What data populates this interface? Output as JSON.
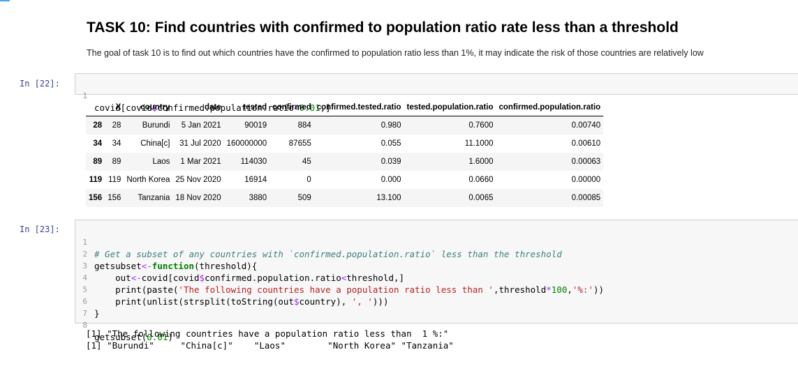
{
  "markdown": {
    "title": "TASK 10: Find countries with confirmed to population ratio rate less than a threshold",
    "description": "The goal of task 10 is to find out which countries have the confirmed to population ratio less than 1%, it may indicate the risk of those countries are relatively low"
  },
  "cell22": {
    "prompt": "In [22]:",
    "line_number": "1",
    "code_parts": {
      "a": "covid[covid",
      "op1": "$",
      "b": "confirmed.population.ratio",
      "op2": "<",
      "num": "0.01",
      "c": ",]"
    }
  },
  "table": {
    "columns": [
      "",
      "X",
      "country",
      "date",
      "tested",
      "confirmed",
      "confirmed.tested.ratio",
      "tested.population.ratio",
      "confirmed.population.ratio"
    ],
    "rows": [
      [
        "28",
        "28",
        "Burundi",
        "5 Jan 2021",
        "90019",
        "884",
        "0.980",
        "0.7600",
        "0.00740"
      ],
      [
        "34",
        "34",
        "China[c]",
        "31 Jul 2020",
        "160000000",
        "87655",
        "0.055",
        "11.1000",
        "0.00610"
      ],
      [
        "89",
        "89",
        "Laos",
        "1 Mar 2021",
        "114030",
        "45",
        "0.039",
        "1.6000",
        "0.00063"
      ],
      [
        "119",
        "119",
        "North Korea",
        "25 Nov 2020",
        "16914",
        "0",
        "0.000",
        "0.0660",
        "0.00000"
      ],
      [
        "156",
        "156",
        "Tanzania",
        "18 Nov 2020",
        "3880",
        "509",
        "13.100",
        "0.0065",
        "0.00085"
      ]
    ]
  },
  "cell23": {
    "prompt": "In [23]:",
    "line_numbers": [
      "1",
      "2",
      "3",
      "4",
      "5",
      "6",
      "7",
      "8"
    ],
    "l1": "# Get a subset of any countries with `confirmed.population.ratio` less than the threshold",
    "l2a": "getsubset",
    "l2op": "<-",
    "l2kw": "function",
    "l2b": "(threshold){",
    "l3a": "    out",
    "l3op": "<-",
    "l3b": "covid[covid",
    "l3op2": "$",
    "l3c": "confirmed.population.ratio",
    "l3op3": "<",
    "l3d": "threshold,]",
    "l4a": "    print(paste(",
    "l4str": "'The following countries have a population ratio less than '",
    "l4b": ",threshold",
    "l4op": "*",
    "l4num": "100",
    "l4c": ",",
    "l4str2": "'%:'",
    "l4d": "))",
    "l5a": "    print(unlist(strsplit(toString(out",
    "l5op": "$",
    "l5b": "country), ",
    "l5str": "', '",
    "l5c": ")))",
    "l6": "}",
    "l8a": "getsubset(",
    "l8num": "0.01",
    "l8b": ")",
    "output": [
      "[1] \"The following countries have a population ratio less than  1 %:\"",
      "[1] \"Burundi\"     \"China[c]\"    \"Laos\"        \"North Korea\" \"Tanzania\""
    ]
  }
}
